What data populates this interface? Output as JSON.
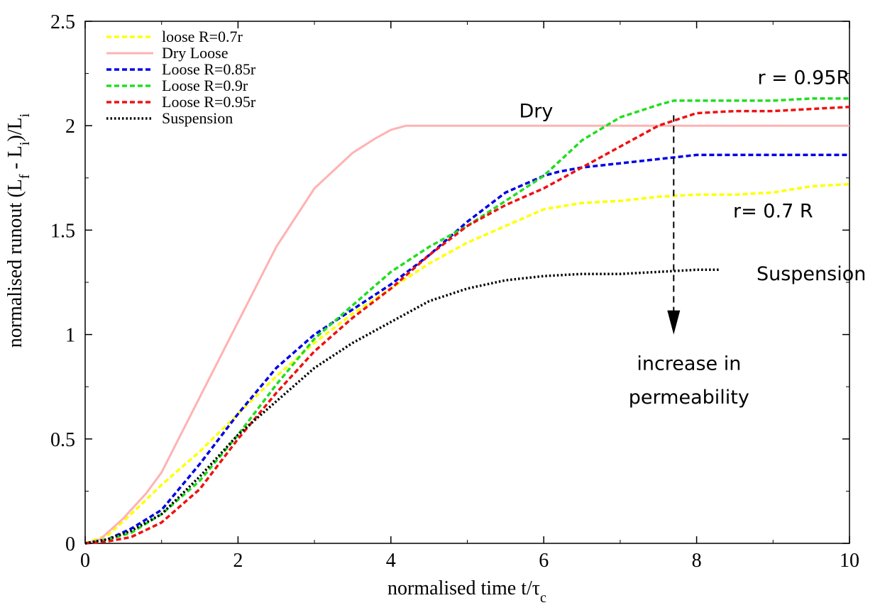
{
  "chart_data": {
    "type": "line",
    "title": "",
    "xlabel": "normalised time t/τc",
    "ylabel": "normalised runout (Lf - Li)/Li",
    "xlim": [
      0,
      10
    ],
    "ylim": [
      0,
      2.5
    ],
    "xticks": [
      "0",
      "2",
      "4",
      "6",
      "8",
      "10"
    ],
    "yticks": [
      "0",
      "0.5",
      "1",
      "1.5",
      "2",
      "2.5"
    ],
    "legend_position": "top-left",
    "series": [
      {
        "name": "loose R=0.7r",
        "color": "#ffff00",
        "style": "dashed",
        "x": [
          0,
          0.3,
          0.6,
          1,
          1.5,
          2,
          2.5,
          3,
          3.5,
          4,
          4.5,
          5,
          5.5,
          6,
          6.5,
          7,
          7.5,
          8,
          8.5,
          9,
          9.5,
          10
        ],
        "y": [
          0,
          0.04,
          0.14,
          0.28,
          0.44,
          0.62,
          0.8,
          0.96,
          1.1,
          1.22,
          1.34,
          1.44,
          1.52,
          1.6,
          1.63,
          1.64,
          1.66,
          1.67,
          1.67,
          1.68,
          1.71,
          1.72
        ]
      },
      {
        "name": "Dry Loose",
        "color": "#ffb2b2",
        "style": "solid",
        "x": [
          0,
          0.2,
          0.5,
          0.8,
          1,
          1.5,
          2,
          2.5,
          3,
          3.5,
          3.8,
          4,
          4.2,
          4.4,
          5,
          6,
          7,
          8,
          9,
          10
        ],
        "y": [
          0,
          0.02,
          0.12,
          0.24,
          0.34,
          0.7,
          1.06,
          1.42,
          1.7,
          1.87,
          1.94,
          1.98,
          2.0,
          2.0,
          2.0,
          2.0,
          2.0,
          2.0,
          2.0,
          2.0
        ]
      },
      {
        "name": "Loose R=0.85r",
        "color": "#0000e6",
        "style": "dashed",
        "x": [
          0,
          0.3,
          0.6,
          1,
          1.5,
          2,
          2.5,
          3,
          3.5,
          4,
          4.5,
          5,
          5.5,
          6,
          6.2,
          6.5,
          7,
          7.5,
          8,
          8.5,
          9,
          9.5,
          10
        ],
        "y": [
          0,
          0.02,
          0.07,
          0.16,
          0.38,
          0.62,
          0.84,
          1.0,
          1.12,
          1.24,
          1.38,
          1.54,
          1.68,
          1.76,
          1.78,
          1.8,
          1.82,
          1.84,
          1.86,
          1.86,
          1.86,
          1.86,
          1.86
        ]
      },
      {
        "name": "Loose R=0.9r",
        "color": "#22dd22",
        "style": "dashed",
        "x": [
          0,
          0.3,
          0.6,
          1,
          1.5,
          2,
          2.5,
          3,
          3.5,
          4,
          4.5,
          5,
          5.5,
          6,
          6.5,
          7,
          7.5,
          7.7,
          8,
          9,
          9.5,
          10
        ],
        "y": [
          0,
          0.02,
          0.05,
          0.14,
          0.3,
          0.52,
          0.76,
          0.98,
          1.14,
          1.3,
          1.42,
          1.52,
          1.64,
          1.76,
          1.93,
          2.04,
          2.1,
          2.12,
          2.12,
          2.12,
          2.13,
          2.13
        ]
      },
      {
        "name": "Loose R=0.95r",
        "color": "#ee1111",
        "style": "dashed",
        "x": [
          0,
          0.3,
          0.6,
          1,
          1.5,
          2,
          2.5,
          3,
          3.5,
          4,
          4.5,
          5,
          5.5,
          6,
          6.5,
          7,
          7.5,
          8,
          8.5,
          9,
          9.5,
          10
        ],
        "y": [
          0,
          0.01,
          0.03,
          0.1,
          0.26,
          0.5,
          0.72,
          0.92,
          1.08,
          1.22,
          1.38,
          1.52,
          1.62,
          1.7,
          1.8,
          1.9,
          2.0,
          2.06,
          2.07,
          2.07,
          2.08,
          2.09
        ]
      },
      {
        "name": "Suspension",
        "color": "#000000",
        "style": "dotted",
        "x": [
          0,
          0.3,
          0.6,
          1,
          1.5,
          2,
          2.5,
          3,
          3.5,
          4,
          4.5,
          5,
          5.5,
          6,
          6.5,
          7,
          7.5,
          8,
          8.3
        ],
        "y": [
          0,
          0.02,
          0.06,
          0.14,
          0.32,
          0.52,
          0.68,
          0.84,
          0.96,
          1.06,
          1.16,
          1.22,
          1.26,
          1.28,
          1.29,
          1.29,
          1.3,
          1.31,
          1.31
        ]
      }
    ],
    "annotations": [
      {
        "text": "Dry",
        "x": 5.9,
        "y": 2.04
      },
      {
        "text": "r = 0.95R",
        "x": 9.4,
        "y": 2.2
      },
      {
        "text": "r= 0.7 R",
        "x": 9.0,
        "y": 1.56
      },
      {
        "text": "Suspension",
        "x": 9.5,
        "y": 1.26
      },
      {
        "text": "increase in",
        "x": 7.9,
        "y": 0.83
      },
      {
        "text": "permeability",
        "x": 7.9,
        "y": 0.67
      }
    ],
    "arrow": {
      "x": 7.7,
      "y_from": 2.05,
      "y_to": 1.0
    }
  }
}
